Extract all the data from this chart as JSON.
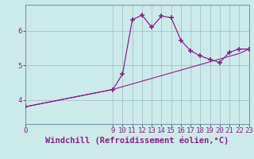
{
  "title": "Windchill (Refroidissement éolien,°C)",
  "background_color": "#cdeaea",
  "line_color": "#882288",
  "x_hours": [
    0,
    9,
    10,
    11,
    12,
    13,
    14,
    15,
    16,
    17,
    18,
    19,
    20,
    21,
    22,
    23
  ],
  "y_values": [
    3.8,
    4.3,
    4.75,
    6.32,
    6.45,
    6.1,
    6.42,
    6.38,
    5.72,
    5.42,
    5.27,
    5.17,
    5.08,
    5.38,
    5.47,
    5.47
  ],
  "x_linear": [
    0,
    9,
    10,
    11,
    12,
    13,
    14,
    15,
    16,
    17,
    18,
    19,
    20,
    21,
    22,
    23
  ],
  "y_linear": [
    3.8,
    4.3,
    4.38,
    4.46,
    4.54,
    4.62,
    4.7,
    4.78,
    4.86,
    4.94,
    5.02,
    5.1,
    5.18,
    5.26,
    5.34,
    5.47
  ],
  "xlim": [
    0,
    23
  ],
  "ylim": [
    3.3,
    6.75
  ],
  "yticks": [
    4,
    5,
    6
  ],
  "xticks": [
    0,
    9,
    10,
    11,
    12,
    13,
    14,
    15,
    16,
    17,
    18,
    19,
    20,
    21,
    22,
    23
  ],
  "xtick_labels": [
    "0",
    "",
    "9 1011121314151617181920212223"
  ],
  "grid_color": "#9bbdbd",
  "marker": "+",
  "marker_size": 5,
  "marker_lw": 1.2,
  "line_width": 1.0,
  "title_fontsize": 7.5,
  "tick_fontsize": 6.5,
  "title_color": "#882288",
  "tick_color": "#882288",
  "spine_color": "#7799aa"
}
